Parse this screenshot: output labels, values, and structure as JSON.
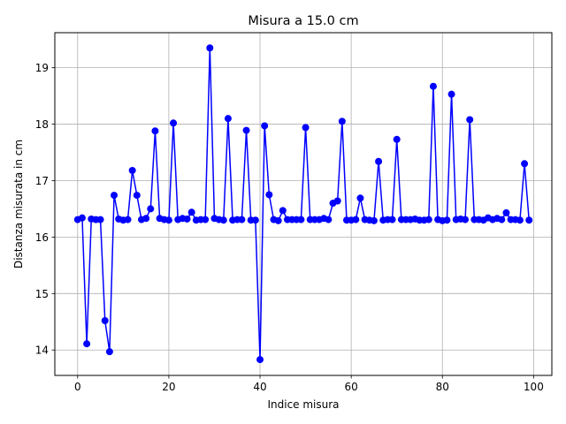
{
  "chart_data": {
    "type": "line",
    "title": "Misura a 15.0 cm",
    "xlabel": "Indice misura",
    "ylabel": "Distanza misurata in cm",
    "xlim": [
      -5,
      104
    ],
    "ylim": [
      13.55,
      19.62
    ],
    "xticks": [
      0,
      20,
      40,
      60,
      80,
      100
    ],
    "yticks": [
      14,
      15,
      16,
      17,
      18,
      19
    ],
    "grid": true,
    "color": "#0000ff",
    "marker": "circle",
    "series": [
      {
        "x": [
          0,
          1,
          2,
          3,
          4,
          5,
          6,
          7,
          8,
          9,
          10,
          11,
          12,
          13,
          14,
          15,
          16,
          17,
          18,
          19,
          20,
          21,
          22,
          23,
          24,
          25,
          26,
          27,
          28,
          29,
          30,
          31,
          32,
          33,
          34,
          35,
          36,
          37,
          38,
          39,
          40,
          41,
          42,
          43,
          44,
          45,
          46,
          47,
          48,
          49,
          50,
          51,
          52,
          53,
          54,
          55,
          56,
          57,
          58,
          59,
          60,
          61,
          62,
          63,
          64,
          65,
          66,
          67,
          68,
          69,
          70,
          71,
          72,
          73,
          74,
          75,
          76,
          77,
          78,
          79,
          80,
          81,
          82,
          83,
          84,
          85,
          86,
          87,
          88,
          89,
          90,
          91,
          92,
          93,
          94,
          95,
          96,
          97,
          98,
          99
        ],
        "values": [
          16.31,
          16.34,
          14.11,
          16.32,
          16.31,
          16.31,
          14.52,
          13.97,
          16.74,
          16.32,
          16.3,
          16.31,
          17.18,
          16.74,
          16.31,
          16.33,
          16.5,
          17.88,
          16.33,
          16.31,
          16.3,
          18.02,
          16.31,
          16.33,
          16.32,
          16.44,
          16.3,
          16.31,
          16.31,
          19.35,
          16.33,
          16.31,
          16.3,
          18.1,
          16.3,
          16.31,
          16.31,
          17.89,
          16.3,
          16.3,
          13.83,
          17.97,
          16.75,
          16.31,
          16.29,
          16.47,
          16.31,
          16.31,
          16.31,
          16.31,
          17.94,
          16.31,
          16.31,
          16.31,
          16.33,
          16.31,
          16.6,
          16.64,
          18.05,
          16.3,
          16.3,
          16.31,
          16.69,
          16.31,
          16.3,
          16.29,
          17.34,
          16.3,
          16.31,
          16.31,
          17.73,
          16.31,
          16.31,
          16.31,
          16.32,
          16.3,
          16.3,
          16.31,
          18.67,
          16.31,
          16.29,
          16.3,
          18.53,
          16.31,
          16.32,
          16.31,
          18.08,
          16.31,
          16.31,
          16.3,
          16.34,
          16.31,
          16.33,
          16.31,
          16.43,
          16.31,
          16.31,
          16.3,
          17.3,
          16.3
        ]
      }
    ]
  }
}
